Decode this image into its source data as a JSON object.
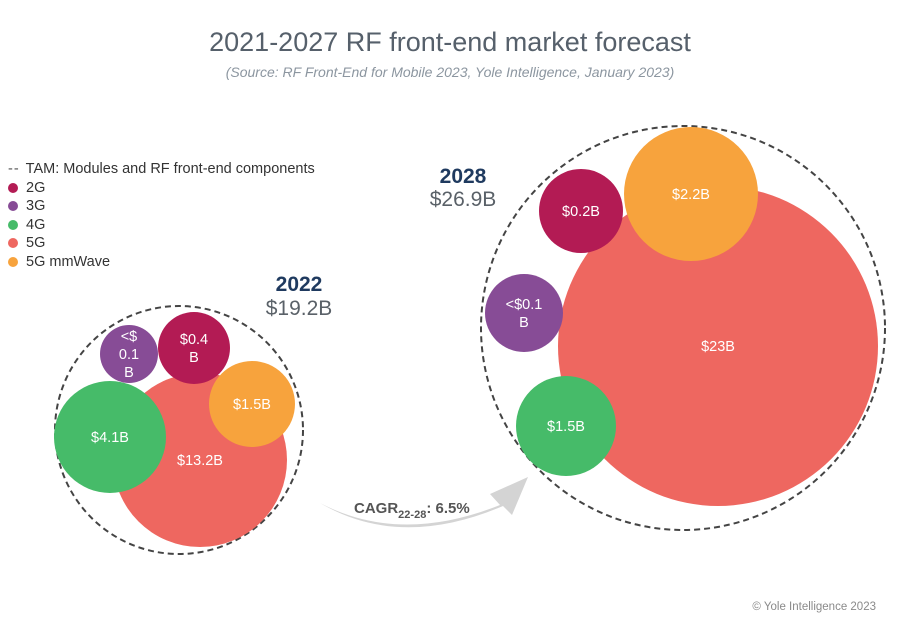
{
  "title": "2021-2027 RF front-end market forecast",
  "subtitle": "(Source: RF Front-End for Mobile 2023, Yole Intelligence, January 2023)",
  "copyright": "© Yole Intelligence 2023",
  "legend": {
    "tam_label": "TAM: Modules and RF front-end components",
    "items": [
      {
        "label": "2G",
        "color": "#b31b54"
      },
      {
        "label": "3G",
        "color": "#874c96"
      },
      {
        "label": "4G",
        "color": "#46bb69"
      },
      {
        "label": "5G",
        "color": "#ee6760"
      },
      {
        "label": "5G mmWave",
        "color": "#f7a33d"
      }
    ]
  },
  "chart_data": {
    "type": "bubble",
    "colors": {
      "2G": "#b31b54",
      "3G": "#874c96",
      "4G": "#46bb69",
      "5G": "#ee6760",
      "5G mmWave": "#f7a33d"
    },
    "groups": [
      {
        "year": "2022",
        "total": "$19.2B",
        "segments": [
          {
            "series": "5G",
            "label": "$13.2B",
            "value": 13.2
          },
          {
            "series": "4G",
            "label": "$4.1B",
            "value": 4.1
          },
          {
            "series": "5G mmWave",
            "label": "$1.5B",
            "value": 1.5
          },
          {
            "series": "2G",
            "label": "$0.4\nB",
            "value": 0.4
          },
          {
            "series": "3G",
            "label": "<$\n0.1\nB",
            "value": 0.1
          }
        ]
      },
      {
        "year": "2028",
        "total": "$26.9B",
        "segments": [
          {
            "series": "5G",
            "label": "$23B",
            "value": 23
          },
          {
            "series": "5G mmWave",
            "label": "$2.2B",
            "value": 2.2
          },
          {
            "series": "2G",
            "label": "$0.2B",
            "value": 0.2
          },
          {
            "series": "3G",
            "label": "<$0.1\nB",
            "value": 0.1
          },
          {
            "series": "4G",
            "label": "$1.5B",
            "value": 1.5
          }
        ]
      }
    ],
    "cagr": {
      "prefix": "CAGR",
      "sub": "22-28",
      "value": ": 6.5%"
    }
  }
}
